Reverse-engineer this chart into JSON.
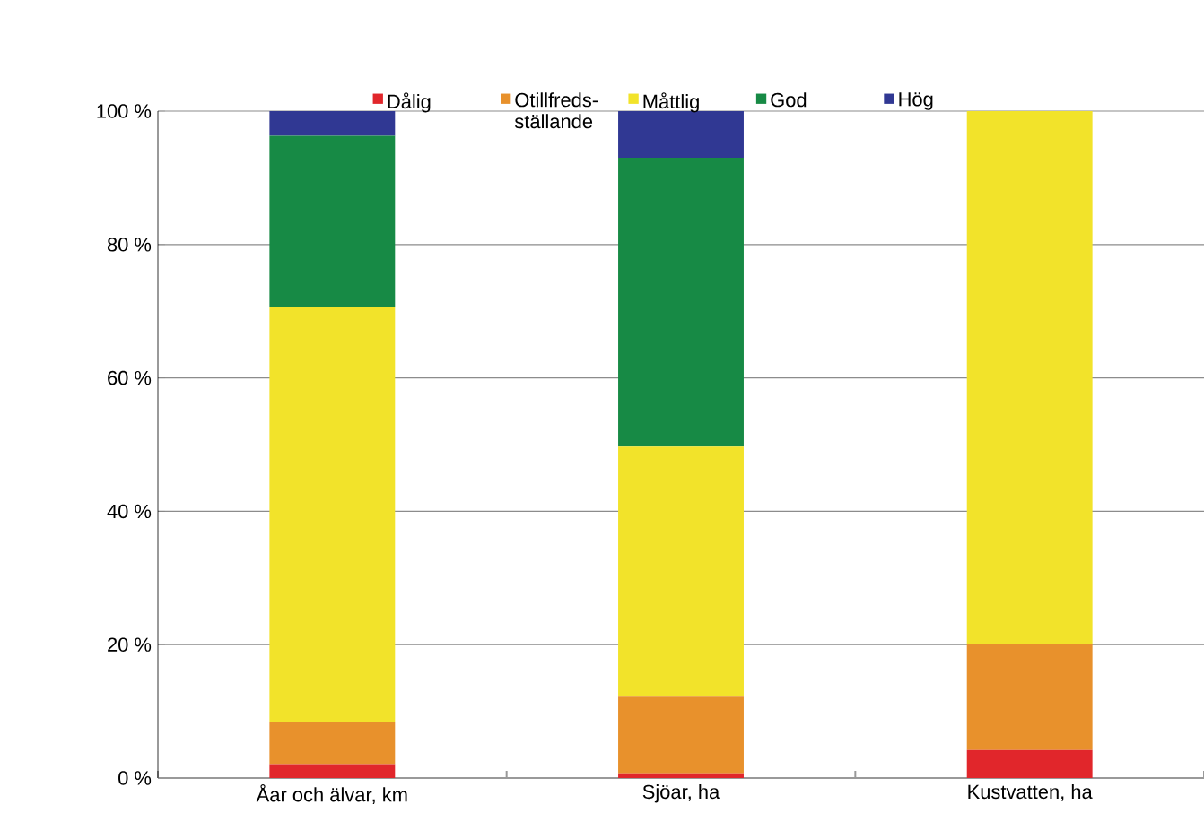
{
  "chart_data": {
    "type": "bar",
    "stacked": true,
    "categories": [
      "Åar och älvar, km",
      "Sjöar, ha",
      "Kustvatten, ha"
    ],
    "series": [
      {
        "name": "Dålig",
        "color": "#e1262b",
        "values": [
          2.1,
          0.7,
          4.2
        ]
      },
      {
        "name": "Otillfreds-ställande",
        "color": "#e8912c",
        "values": [
          6.3,
          11.5,
          15.9
        ]
      },
      {
        "name": "Måttlig",
        "color": "#f2e32a",
        "values": [
          62.2,
          37.5,
          79.9
        ]
      },
      {
        "name": "God",
        "color": "#178a45",
        "values": [
          25.7,
          43.3,
          0
        ]
      },
      {
        "name": "Hög",
        "color": "#303893",
        "values": [
          3.7,
          7.0,
          0
        ]
      }
    ],
    "ylim": [
      0,
      100
    ],
    "yticks": [
      {
        "value": 0,
        "label": "0 %"
      },
      {
        "value": 20,
        "label": "20 %"
      },
      {
        "value": 40,
        "label": "40 %"
      },
      {
        "value": 60,
        "label": "60 %"
      },
      {
        "value": 80,
        "label": "80 %"
      },
      {
        "value": 100,
        "label": "100 %"
      }
    ],
    "grid": "y",
    "legend": "top"
  }
}
